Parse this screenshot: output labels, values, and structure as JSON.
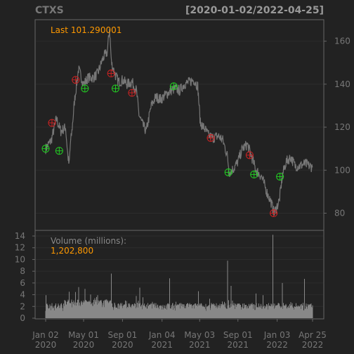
{
  "header": {
    "symbol": "CTXS",
    "range": "[2020-01-02/2022-04-25]"
  },
  "chart_data": [
    {
      "type": "line",
      "panel": "price",
      "label_prefix": "Last",
      "last_value": "101.290001",
      "ylim": [
        72,
        170
      ],
      "y_ticks": [
        80,
        100,
        120,
        140,
        160
      ],
      "y_tick_labels": [
        "80",
        "100",
        "120",
        "140",
        "160"
      ],
      "grid": true,
      "series": [
        {
          "x": [
            "2020-01-02",
            "2020-01-20",
            "2020-02-05",
            "2020-02-19",
            "2020-03-05",
            "2020-03-12",
            "2020-03-16",
            "2020-03-20",
            "2020-03-25",
            "2020-04-02",
            "2020-04-15",
            "2020-05-01",
            "2020-05-15",
            "2020-06-01",
            "2020-06-15",
            "2020-07-01",
            "2020-07-15",
            "2020-07-22",
            "2020-07-28",
            "2020-08-01",
            "2020-08-10",
            "2020-08-20",
            "2020-09-01",
            "2020-09-15",
            "2020-10-01",
            "2020-10-15",
            "2020-10-23",
            "2020-11-01",
            "2020-11-15",
            "2020-12-01",
            "2020-12-15",
            "2021-01-01",
            "2021-01-15",
            "2021-02-01",
            "2021-02-15",
            "2021-03-01",
            "2021-03-15",
            "2021-04-01",
            "2021-04-15",
            "2021-04-27",
            "2021-05-05",
            "2021-05-20",
            "2021-06-01",
            "2021-06-15",
            "2021-07-01",
            "2021-07-15",
            "2021-07-29",
            "2021-08-05",
            "2021-08-20",
            "2021-09-01",
            "2021-09-15",
            "2021-10-01",
            "2021-10-15",
            "2021-10-28",
            "2021-11-15",
            "2021-12-01",
            "2021-12-15",
            "2021-12-25",
            "2022-01-10",
            "2022-01-20",
            "2022-02-01",
            "2022-02-15",
            "2022-03-01",
            "2022-03-15",
            "2022-04-01",
            "2022-04-15",
            "2022-04-25"
          ],
          "y": [
            110,
            114,
            124,
            118,
            120,
            107,
            102,
            112,
            118,
            132,
            147,
            140,
            143,
            143,
            145,
            152,
            155,
            166,
            150,
            148,
            144,
            141,
            142,
            140,
            141,
            137,
            126,
            122,
            118,
            130,
            134,
            133,
            135,
            137,
            138,
            137,
            140,
            141,
            142,
            139,
            122,
            119,
            116,
            115,
            116,
            114,
            107,
            99,
            101,
            104,
            110,
            112,
            106,
            100,
            97,
            90,
            85,
            80,
            86,
            98,
            104,
            106,
            102,
            102,
            103,
            102,
            101.29
          ]
        }
      ],
      "markers": [
        {
          "x": "2020-01-02",
          "y": 110,
          "kind": "up"
        },
        {
          "x": "2020-01-22",
          "y": 122,
          "kind": "down"
        },
        {
          "x": "2020-02-14",
          "y": 109,
          "kind": "up"
        },
        {
          "x": "2020-04-06",
          "y": 142,
          "kind": "down"
        },
        {
          "x": "2020-05-05",
          "y": 138,
          "kind": "up"
        },
        {
          "x": "2020-07-27",
          "y": 145,
          "kind": "down"
        },
        {
          "x": "2020-08-10",
          "y": 138,
          "kind": "up"
        },
        {
          "x": "2020-10-01",
          "y": 136,
          "kind": "down"
        },
        {
          "x": "2021-02-10",
          "y": 139,
          "kind": "up"
        },
        {
          "x": "2021-06-07",
          "y": 115,
          "kind": "down"
        },
        {
          "x": "2021-08-02",
          "y": 99,
          "kind": "up"
        },
        {
          "x": "2021-10-08",
          "y": 107,
          "kind": "down"
        },
        {
          "x": "2021-10-22",
          "y": 98,
          "kind": "up"
        },
        {
          "x": "2021-12-23",
          "y": 80,
          "kind": "down"
        },
        {
          "x": "2022-01-12",
          "y": 97,
          "kind": "up"
        }
      ],
      "colors": {
        "line": "#777777",
        "up": "#22cc22",
        "down": "#cc2222",
        "label": "#ff9900"
      }
    },
    {
      "type": "bar",
      "panel": "volume",
      "title": "Volume (millions):",
      "last_value": "1,202,800",
      "ylim": [
        0,
        14.6
      ],
      "y_ticks": [
        0,
        2,
        4,
        6,
        8,
        10,
        12,
        14
      ],
      "y_tick_labels": [
        "0",
        "2",
        "4",
        "6",
        "8",
        "10",
        "12",
        "14"
      ],
      "x_tick_labels": [
        [
          "Jan 02",
          "2020"
        ],
        [
          "May 01",
          "2020"
        ],
        [
          "Sep 01",
          "2020"
        ],
        [
          "Jan 04",
          "2021"
        ],
        [
          "May 03",
          "2021"
        ],
        [
          "Sep 01",
          "2021"
        ],
        [
          "Jan 03",
          "2022"
        ],
        [
          "Apr 25",
          "2022"
        ]
      ],
      "x_tick_dates": [
        "2020-01-02",
        "2020-05-01",
        "2020-09-01",
        "2021-01-04",
        "2021-05-03",
        "2021-09-01",
        "2022-01-03",
        "2022-04-25"
      ],
      "spikes": [
        {
          "x": "2020-03-16",
          "y": 4.5
        },
        {
          "x": "2020-04-15",
          "y": 5.3
        },
        {
          "x": "2020-05-05",
          "y": 5.0
        },
        {
          "x": "2020-07-28",
          "y": 7.6
        },
        {
          "x": "2020-09-10",
          "y": 3.0
        },
        {
          "x": "2020-10-26",
          "y": 5.2
        },
        {
          "x": "2021-01-28",
          "y": 6.8
        },
        {
          "x": "2021-04-29",
          "y": 4.6
        },
        {
          "x": "2021-07-30",
          "y": 9.8
        },
        {
          "x": "2021-08-10",
          "y": 5.5
        },
        {
          "x": "2021-10-28",
          "y": 4.2
        },
        {
          "x": "2021-12-21",
          "y": 14.2
        },
        {
          "x": "2022-01-20",
          "y": 6.0
        },
        {
          "x": "2022-03-30",
          "y": 6.7
        }
      ],
      "base_level": 1.2,
      "colors": {
        "bars": "#888888",
        "label": "#ff9900"
      }
    }
  ]
}
